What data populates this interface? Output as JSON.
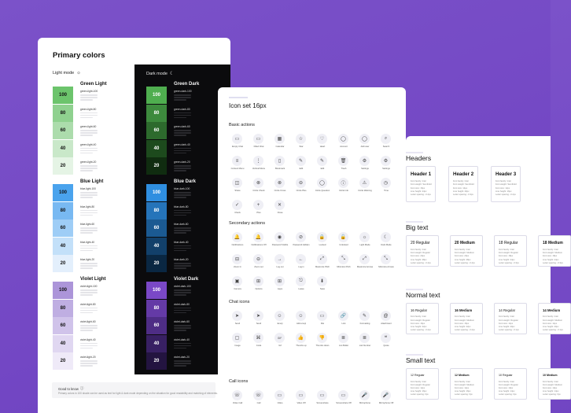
{
  "colors_card": {
    "title": "Primary colors",
    "light_mode_label": "Light mode",
    "dark_mode_label": "Dark mode",
    "groups_light": [
      {
        "name": "Green Light",
        "accent": "#5cbb5c",
        "swatches": [
          {
            "label": "100",
            "color": "#6cc46c",
            "text_color": "#111"
          },
          {
            "label": "80",
            "color": "#8fd18f",
            "text_color": "#111"
          },
          {
            "label": "60",
            "color": "#acdcac",
            "text_color": "#111"
          },
          {
            "label": "40",
            "color": "#c9e8c9",
            "text_color": "#111"
          },
          {
            "label": "20",
            "color": "#e5f4e5",
            "text_color": "#111"
          }
        ],
        "labels": [
          "green-light-100",
          "green-light-80",
          "green-light-60",
          "green-light-40",
          "green-light-20"
        ]
      },
      {
        "name": "Blue Light",
        "accent": "#3d9be9",
        "swatches": [
          {
            "label": "100",
            "color": "#4aa3ed",
            "text_color": "#111"
          },
          {
            "label": "80",
            "color": "#78b9f2",
            "text_color": "#111"
          },
          {
            "label": "60",
            "color": "#9ecdf6",
            "text_color": "#111"
          },
          {
            "label": "40",
            "color": "#c3e0f9",
            "text_color": "#111"
          },
          {
            "label": "20",
            "color": "#e3effc",
            "text_color": "#111"
          }
        ],
        "labels": [
          "blue-light-100",
          "blue-light-80",
          "blue-light-60",
          "blue-light-40",
          "blue-light-20"
        ]
      },
      {
        "name": "Violet Light",
        "accent": "#a68bd6",
        "swatches": [
          {
            "label": "100",
            "color": "#ac95d9",
            "text_color": "#111"
          },
          {
            "label": "80",
            "color": "#bfaee2",
            "text_color": "#111"
          },
          {
            "label": "60",
            "color": "#d0c3ea",
            "text_color": "#111"
          },
          {
            "label": "40",
            "color": "#e0d7f1",
            "text_color": "#111"
          },
          {
            "label": "20",
            "color": "#efeaf8",
            "text_color": "#111"
          }
        ],
        "labels": [
          "violet-light-100",
          "violet-light-80",
          "violet-light-60",
          "violet-light-40",
          "violet-light-20"
        ]
      }
    ],
    "groups_dark": [
      {
        "name": "Green Dark",
        "swatches": [
          {
            "label": "100",
            "color": "#4fae4f",
            "text_color": "#fff"
          },
          {
            "label": "80",
            "color": "#3d8a3d",
            "text_color": "#fff"
          },
          {
            "label": "60",
            "color": "#2d6a2d",
            "text_color": "#fff"
          },
          {
            "label": "40",
            "color": "#1d4a1d",
            "text_color": "#fff"
          },
          {
            "label": "20",
            "color": "#102c10",
            "text_color": "#fff"
          }
        ],
        "labels": [
          "green-dark-100",
          "green-dark-80",
          "green-dark-60",
          "green-dark-40",
          "green-dark-20"
        ]
      },
      {
        "name": "Blue Dark",
        "swatches": [
          {
            "label": "100",
            "color": "#2f8ee0",
            "text_color": "#fff"
          },
          {
            "label": "80",
            "color": "#2574ba",
            "text_color": "#fff"
          },
          {
            "label": "60",
            "color": "#1b5a92",
            "text_color": "#fff"
          },
          {
            "label": "40",
            "color": "#12406a",
            "text_color": "#fff"
          },
          {
            "label": "20",
            "color": "#0a2742",
            "text_color": "#fff"
          }
        ],
        "labels": [
          "blue-dark-100",
          "blue-dark-80",
          "blue-dark-60",
          "blue-dark-40",
          "blue-dark-20"
        ]
      },
      {
        "name": "Violet Dark",
        "swatches": [
          {
            "label": "100",
            "color": "#7a48c6",
            "text_color": "#fff"
          },
          {
            "label": "80",
            "color": "#643aa6",
            "text_color": "#fff"
          },
          {
            "label": "60",
            "color": "#4e2d85",
            "text_color": "#fff"
          },
          {
            "label": "40",
            "color": "#382063",
            "text_color": "#fff"
          },
          {
            "label": "20",
            "color": "#231440",
            "text_color": "#fff"
          }
        ],
        "labels": [
          "violet-dark-100",
          "violet-dark-80",
          "violet-dark-60",
          "violet-dark-40",
          "violet-dark-20"
        ]
      }
    ],
    "good_to_know_title": "Good to know",
    "good_to_know_text": "Primary colors in 100 shade can be used as text for light & dark mode depending on the situation for good readability and matching of elements."
  },
  "icons_card": {
    "title": "Icon set 16px",
    "sections": [
      {
        "title": "Basic actions",
        "rows": [
          [
            [
              "▭",
              "Empty Chat"
            ],
            [
              "▭",
              "Filled Chat"
            ],
            [
              "▦",
              "Calendar"
            ],
            [
              "☆",
              "Star"
            ],
            [
              "♡",
              "Heart"
            ],
            [
              "◯",
              "Account"
            ],
            [
              "◯",
              "Add user"
            ],
            [
              "⌕",
              "Search"
            ]
          ],
          [
            [
              "≡",
              "Context Menu"
            ],
            [
              "⋮",
              "Vertical Menu"
            ],
            [
              "▯",
              "Bookmark"
            ],
            [
              "✎",
              "Edit"
            ],
            [
              "✎",
              "Edit"
            ],
            [
              "🗑",
              "Trash"
            ],
            [
              "⚙",
              "Settings"
            ],
            [
              "⚙",
              "Settings"
            ]
          ],
          [
            [
              "◫",
              "Share"
            ],
            [
              "⊗",
              "Circle Check"
            ],
            [
              "⊗",
              "Circle Cross"
            ],
            [
              "⊖",
              "Circle Plus"
            ],
            [
              "◯",
              "Circle Question"
            ],
            [
              "ⓘ",
              "Circle Info"
            ],
            [
              "⚠",
              "Circle Warning"
            ],
            [
              "◷",
              "Time"
            ]
          ],
          [
            [
              "✓",
              "Check"
            ],
            [
              "+",
              "Plus"
            ],
            [
              "✕",
              "Close"
            ]
          ]
        ]
      },
      {
        "title": "Secondary actions",
        "rows": [
          [
            [
              "🔔",
              "Notifications"
            ],
            [
              "🔔",
              "Notifications Off"
            ],
            [
              "◉",
              "Password Visible"
            ],
            [
              "⊘",
              "Password Hidden"
            ],
            [
              "🔒",
              "Locked"
            ],
            [
              "🔓",
              "Unlocked"
            ],
            [
              "☼",
              "Light Mode"
            ],
            [
              "☾",
              "Dark Mode"
            ]
          ],
          [
            [
              "⊟",
              "Zoom In"
            ],
            [
              "⊖",
              "Zoom out"
            ],
            [
              "→",
              "Log out"
            ],
            [
              "←",
              "Log in"
            ],
            [
              "⤢",
              "Maximize Pitch"
            ],
            [
              "⤡",
              "Minimize Pitch"
            ],
            [
              "⤢",
              "Maximize Arrows"
            ],
            [
              "⤡",
              "Minimize Arrows"
            ]
          ],
          [
            [
              "▣",
              "Camera"
            ],
            [
              "⊞",
              "Options"
            ],
            [
              "⊞",
              "Apps"
            ],
            [
              "⎋",
              "Leave"
            ],
            [
              "⬇",
              "Save"
            ]
          ]
        ]
      },
      {
        "title": "Chat icons",
        "rows": [
          [
            [
              "➤",
              "Send"
            ],
            [
              "➤",
              "Send"
            ],
            [
              "☺",
              "Emoji"
            ],
            [
              "☺",
              "Add emoji"
            ],
            [
              "▭",
              "File"
            ],
            [
              "🔗",
              "Link"
            ],
            [
              "✎",
              "Formatting"
            ],
            [
              "@",
              "Attachment"
            ]
          ],
          [
            [
              "▢",
              "Image"
            ],
            [
              "⌘",
              "Code"
            ],
            [
              "GIF",
              "Gif"
            ],
            [
              "👍",
              "Thumbs up"
            ],
            [
              "👎",
              "Thumbs down"
            ],
            [
              "≣",
              "List Bullet"
            ],
            [
              "≣",
              "List Number"
            ],
            [
              "❝",
              "Quote"
            ]
          ]
        ]
      },
      {
        "title": "Call icons",
        "rows": [
          [
            [
              "☏",
              "Video Call"
            ],
            [
              "☏",
              "Call"
            ],
            [
              "▭",
              "Video"
            ],
            [
              "▭",
              "Video Off"
            ],
            [
              "▭",
              "Screenshare"
            ],
            [
              "▭",
              "Screenshare Off"
            ],
            [
              "🎤",
              "Microphone"
            ],
            [
              "🎤",
              "Microphone Off"
            ]
          ]
        ]
      }
    ]
  },
  "type_card": {
    "sections": [
      {
        "title": "Headers",
        "boxes": [
          {
            "name": "Header 1",
            "meta": [
              "Font family: Inter",
              "Font weight: Semibold",
              "Font size: 16px",
              "Line height: 24px",
              "Letter spacing: -0.4px"
            ]
          },
          {
            "name": "Header 2",
            "meta": [
              "Font family: Inter",
              "Font weight: Semibold",
              "Font size: 14px",
              "Line height: 20px",
              "Letter spacing: -0.3px"
            ]
          },
          {
            "name": "Header 3",
            "meta": [
              "Font family: Inter",
              "Font weight: Semibold",
              "Font size: 12px",
              "Line height: 16px",
              "Letter spacing: -0.2px"
            ]
          }
        ]
      },
      {
        "title": "Big text",
        "boxes": [
          {
            "name": "20 Regular",
            "meta": [
              "Font family: Inter",
              "Font weight: Regular",
              "Font size: 20px",
              "Line height: 28px",
              "Letter spacing: -0.4px"
            ]
          },
          {
            "name": "20 Medium",
            "meta": [
              "Font family: Inter",
              "Font weight: Medium",
              "Font size: 20px",
              "Line height: 28px",
              "Letter spacing: -0.4px"
            ]
          },
          {
            "name": "18 Regular",
            "meta": [
              "Font family: Inter",
              "Font weight: Regular",
              "Font size: 18px",
              "Line height: 24px",
              "Letter spacing: -0.3px"
            ]
          },
          {
            "name": "18 Medium",
            "meta": [
              "Font family: Inter",
              "Font weight: Medium",
              "Font size: 18px",
              "Line height: 24px",
              "Letter spacing: -0.3px"
            ]
          }
        ]
      },
      {
        "title": "Normal text",
        "boxes": [
          {
            "name": "16 Regular",
            "meta": [
              "Font family: Inter",
              "Font weight: Regular",
              "Font size: 16px",
              "Line height: 22px",
              "Letter spacing: -0.2px"
            ]
          },
          {
            "name": "16 Medium",
            "meta": [
              "Font family: Inter",
              "Font weight: Medium",
              "Font size: 16px",
              "Line height: 22px",
              "Letter spacing: -0.2px"
            ]
          },
          {
            "name": "14 Regular",
            "meta": [
              "Font family: Inter",
              "Font weight: Regular",
              "Font size: 14px",
              "Line height: 20px",
              "Letter spacing: -0.1px"
            ]
          },
          {
            "name": "14 Medium",
            "meta": [
              "Font family: Inter",
              "Font weight: Medium",
              "Font size: 14px",
              "Line height: 20px",
              "Letter spacing: -0.1px"
            ]
          }
        ]
      },
      {
        "title": "Small text",
        "boxes": [
          {
            "name": "12 Regular",
            "meta": [
              "Font family: Inter",
              "Font weight: Regular",
              "Font size: 12px",
              "Line height: 16px",
              "Letter spacing: 0px"
            ]
          },
          {
            "name": "12 Medium",
            "meta": [
              "Font family: Inter",
              "Font weight: Medium",
              "Font size: 12px",
              "Line height: 16px",
              "Letter spacing: 0px"
            ]
          },
          {
            "name": "10 Regular",
            "meta": [
              "Font family: Inter",
              "Font weight: Regular",
              "Font size: 10px",
              "Line height: 14px",
              "Letter spacing: 0px"
            ]
          },
          {
            "name": "10 Medium",
            "meta": [
              "Font family: Inter",
              "Font weight: Medium",
              "Font size: 10px",
              "Line height: 14px",
              "Letter spacing: 0px"
            ]
          }
        ]
      }
    ]
  }
}
